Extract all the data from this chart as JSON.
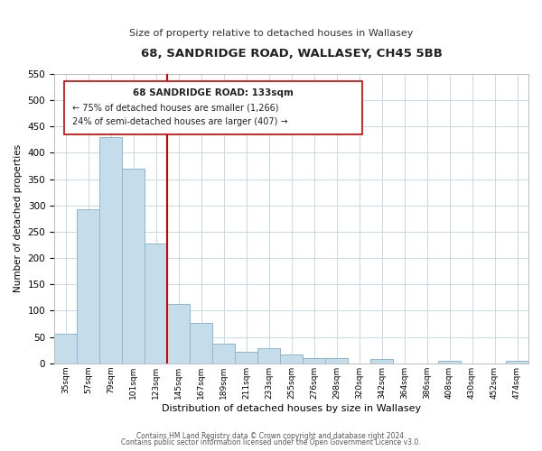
{
  "title": "68, SANDRIDGE ROAD, WALLASEY, CH45 5BB",
  "subtitle": "Size of property relative to detached houses in Wallasey",
  "xlabel": "Distribution of detached houses by size in Wallasey",
  "ylabel": "Number of detached properties",
  "bar_labels": [
    "35sqm",
    "57sqm",
    "79sqm",
    "101sqm",
    "123sqm",
    "145sqm",
    "167sqm",
    "189sqm",
    "211sqm",
    "233sqm",
    "255sqm",
    "276sqm",
    "298sqm",
    "320sqm",
    "342sqm",
    "364sqm",
    "386sqm",
    "408sqm",
    "430sqm",
    "452sqm",
    "474sqm"
  ],
  "bar_values": [
    57,
    293,
    430,
    370,
    228,
    113,
    76,
    38,
    22,
    29,
    17,
    10,
    10,
    0,
    9,
    0,
    0,
    5,
    0,
    0,
    4
  ],
  "bar_color": "#c5dcea",
  "bar_edge_color": "#8cb8d0",
  "vline_x": 4.5,
  "vline_color": "#cc0000",
  "ylim": [
    0,
    550
  ],
  "yticks": [
    0,
    50,
    100,
    150,
    200,
    250,
    300,
    350,
    400,
    450,
    500,
    550
  ],
  "annotation_title": "68 SANDRIDGE ROAD: 133sqm",
  "annotation_line1": "← 75% of detached houses are smaller (1,266)",
  "annotation_line2": "24% of semi-detached houses are larger (407) →",
  "footer1": "Contains HM Land Registry data © Crown copyright and database right 2024.",
  "footer2": "Contains public sector information licensed under the Open Government Licence v3.0.",
  "background_color": "#ffffff",
  "grid_color": "#c8d8e8"
}
